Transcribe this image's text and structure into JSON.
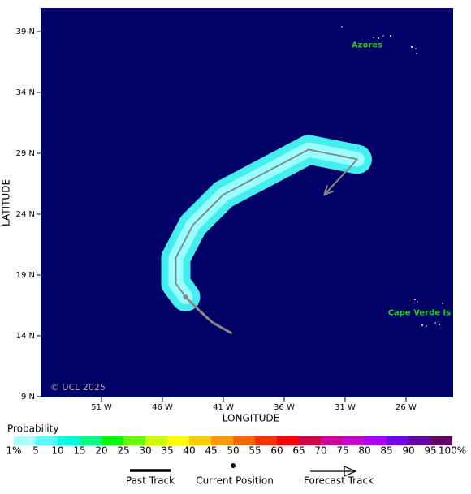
{
  "map": {
    "xlabel": "LONGITUDE",
    "ylabel": "LATITUDE",
    "copyright": "© UCL 2025",
    "xlim": [
      -56,
      -22.13
    ],
    "ylim": [
      8.93,
      40.93
    ],
    "xticks": [
      {
        "value": -51,
        "label": "51 W"
      },
      {
        "value": -46,
        "label": "46 W"
      },
      {
        "value": -41,
        "label": "41 W"
      },
      {
        "value": -36,
        "label": "36 W"
      },
      {
        "value": -31,
        "label": "31 W"
      },
      {
        "value": -26,
        "label": "26 W"
      }
    ],
    "yticks": [
      {
        "value": 9,
        "label": "9 N"
      },
      {
        "value": 14,
        "label": "14 N"
      },
      {
        "value": 19,
        "label": "19 N"
      },
      {
        "value": 24,
        "label": "24 N"
      },
      {
        "value": 29,
        "label": "29 N"
      },
      {
        "value": 34,
        "label": "34 N"
      },
      {
        "value": 39,
        "label": "39 N"
      }
    ],
    "places": [
      {
        "name": "Azores",
        "lon": -29.2,
        "lat": 37.9
      },
      {
        "name": "Cape Verde Is",
        "lon": -24.9,
        "lat": 15.9
      }
    ],
    "past_track": [
      [
        -40.3,
        14.2
      ],
      [
        -41.9,
        15.1
      ],
      [
        -43.0,
        16.1
      ],
      [
        -44.1,
        17.2
      ]
    ],
    "current_position": [
      -44.1,
      17.2
    ],
    "forecast_track": [
      [
        -44.1,
        17.2
      ],
      [
        -44.9,
        18.3
      ],
      [
        -44.9,
        20.4
      ],
      [
        -43.5,
        23.1
      ],
      [
        -41.0,
        25.6
      ],
      [
        -34.0,
        29.3
      ],
      [
        -30.0,
        28.5
      ],
      [
        -32.7,
        25.6
      ]
    ]
  },
  "legend": {
    "title": "Probability",
    "labels": [
      "1%",
      "5",
      "10",
      "15",
      "20",
      "25",
      "30",
      "35",
      "40",
      "45",
      "50",
      "55",
      "60",
      "65",
      "70",
      "75",
      "80",
      "85",
      "90",
      "95",
      "100%"
    ],
    "colors": [
      "#aaffff",
      "#55ffff",
      "#00ffdd",
      "#00ff88",
      "#00ff00",
      "#66ff00",
      "#ccff00",
      "#ffff00",
      "#ffcc00",
      "#ff9900",
      "#ff6600",
      "#ff3300",
      "#ff0000",
      "#cc0044",
      "#cc0099",
      "#cc00cc",
      "#aa00ff",
      "#7700ee",
      "#6600aa",
      "#660066"
    ],
    "past_track": "Past Track",
    "current_position": "Current Position",
    "forecast_track": "Forecast Track"
  }
}
